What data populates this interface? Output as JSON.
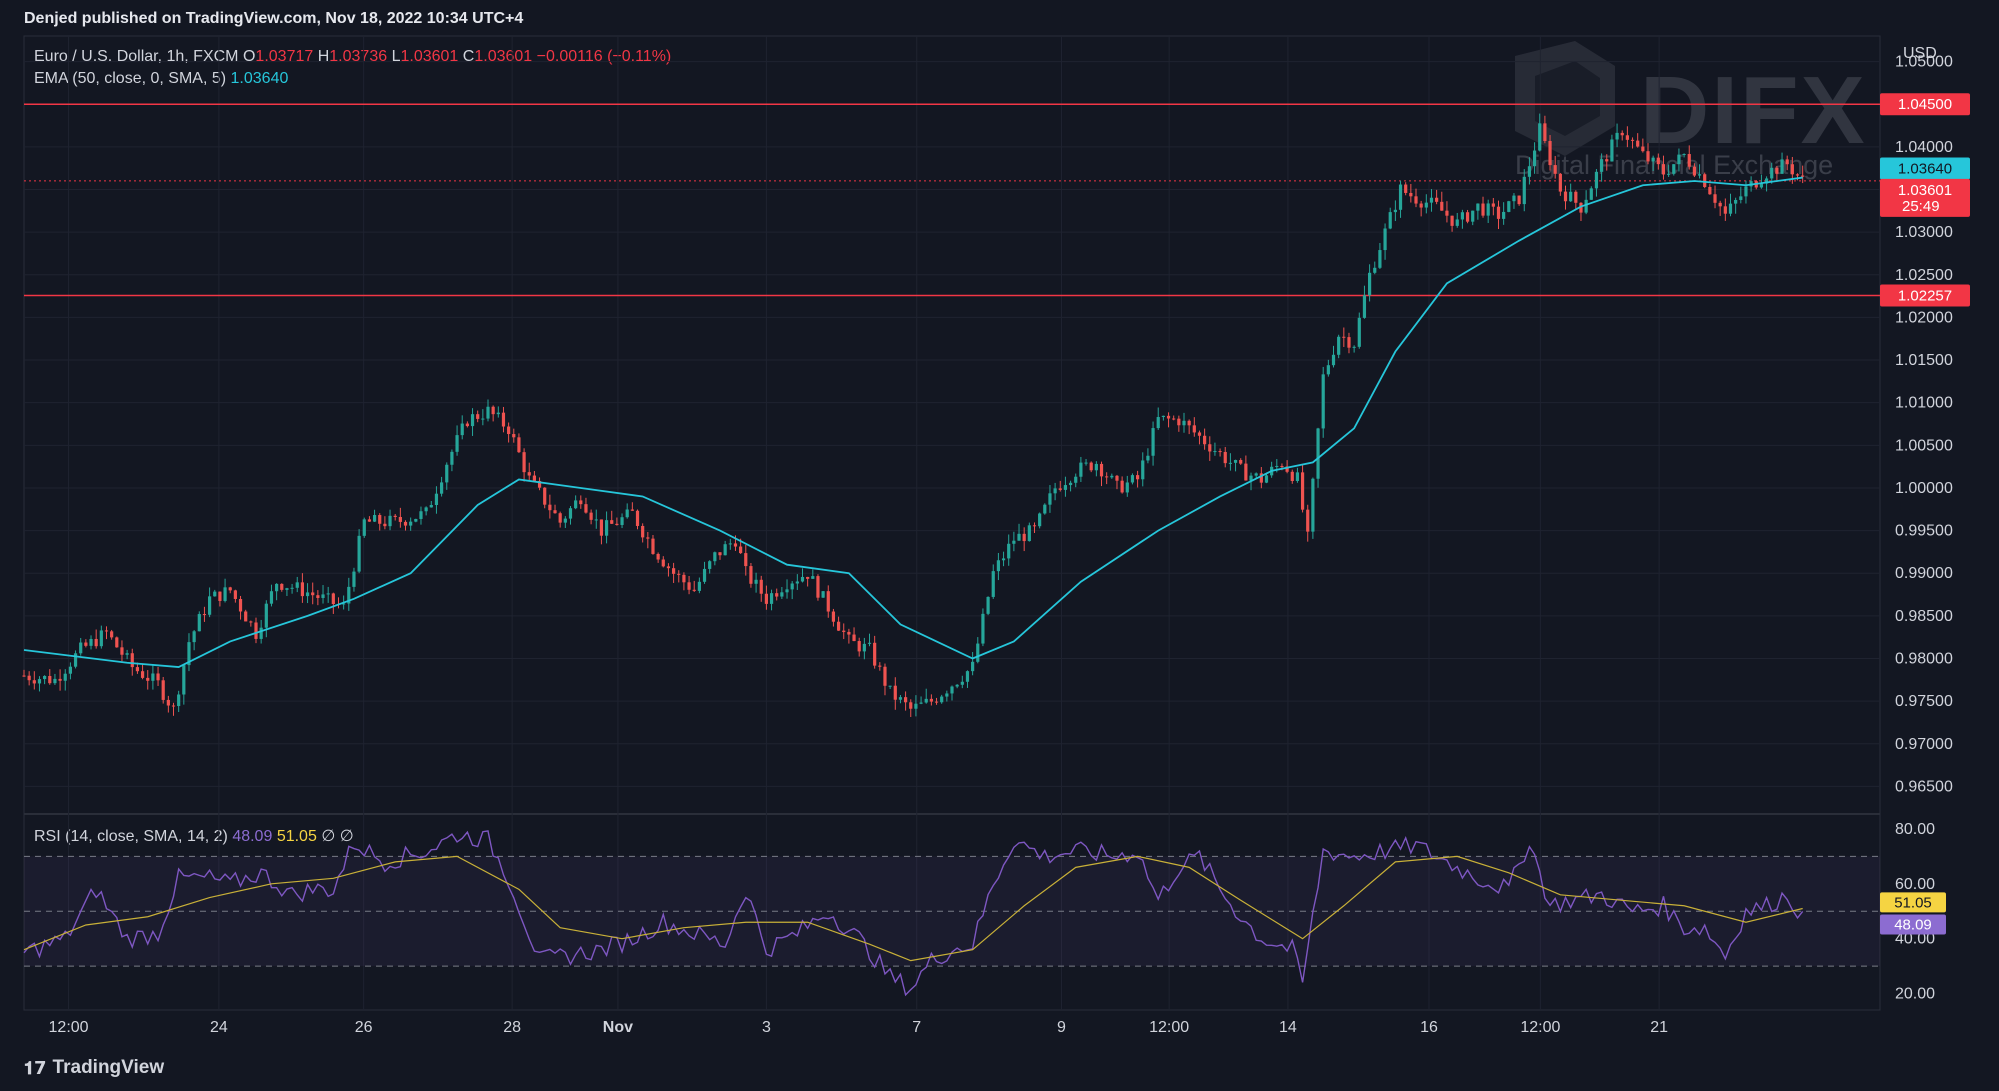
{
  "header": {
    "published": "Denjed published on TradingView.com, Nov 18, 2022 10:34 UTC+4"
  },
  "watermark": {
    "brand": "DIFX",
    "tagline": "Digital Financial Exchange"
  },
  "legend": {
    "symbol": "Euro / U.S. Dollar, 1h, FXCM",
    "o_label": "O",
    "o": "1.03717",
    "h_label": "H",
    "h": "1.03736",
    "l_label": "L",
    "l": "1.03601",
    "c_label": "C",
    "c": "1.03601",
    "change": "−0.00116 (−0.11%)",
    "ema_label": "EMA (50, close, 0, SMA, 5)",
    "ema_value": "1.03640"
  },
  "rsi": {
    "label": "RSI (14, close, SMA, 14, 2)",
    "value": "48.09",
    "ma_value": "51.05",
    "null1": "∅",
    "null2": "∅"
  },
  "footer": {
    "brand": "TradingView"
  },
  "colors": {
    "background": "#131722",
    "up": "#26a69a",
    "down": "#ef5350",
    "ema": "#26c6da",
    "rsi": "#7e57c2",
    "rsi_ma": "#c8b038",
    "hline": "#f23645"
  },
  "chart_data": [
    {
      "type": "candlestick",
      "currency": "USD",
      "y_ticks": [
        "1.05000",
        "1.04500",
        "1.04000",
        "1.03500",
        "1.03000",
        "1.02500",
        "1.02000",
        "1.01500",
        "1.01000",
        "1.00500",
        "1.00000",
        "0.99500",
        "0.99000",
        "0.98500",
        "0.98000",
        "0.97500",
        "0.97000",
        "0.96500"
      ],
      "ylim": [
        0.962,
        1.053
      ],
      "x_ticks": [
        "12:00",
        "24",
        "26",
        "28",
        "Nov",
        "3",
        "7",
        "9",
        "12:00",
        "14",
        "16",
        "12:00",
        "21"
      ],
      "horizontal_lines": [
        {
          "value": 1.045,
          "label": "1.04500"
        },
        {
          "value": 1.02257,
          "label": "1.02257"
        }
      ],
      "badges": [
        {
          "label": "1.03640",
          "value": 1.0364,
          "color": "#26c6da",
          "text_color": "#131722"
        },
        {
          "label": "1.03601",
          "value": 1.03601,
          "sub": "25:49",
          "color": "#f23645",
          "text_color": "#ffffff"
        }
      ],
      "price_path": [
        [
          0,
          0.978
        ],
        [
          6,
          0.9775
        ],
        [
          11,
          0.981
        ],
        [
          16,
          0.983
        ],
        [
          21,
          0.979
        ],
        [
          26,
          0.977
        ],
        [
          29,
          0.974
        ],
        [
          32,
          0.982
        ],
        [
          36,
          0.987
        ],
        [
          40,
          0.988
        ],
        [
          45,
          0.983
        ],
        [
          49,
          0.989
        ],
        [
          54,
          0.988
        ],
        [
          58,
          0.987
        ],
        [
          62,
          0.986
        ],
        [
          66,
          0.996
        ],
        [
          72,
          0.996
        ],
        [
          78,
          0.997
        ],
        [
          82,
          1.003
        ],
        [
          86,
          1.008
        ],
        [
          90,
          1.009
        ],
        [
          94,
          1.007
        ],
        [
          98,
          1.001
        ],
        [
          104,
          0.996
        ],
        [
          108,
          0.999
        ],
        [
          112,
          0.995
        ],
        [
          118,
          0.997
        ],
        [
          122,
          0.993
        ],
        [
          126,
          0.99
        ],
        [
          130,
          0.988
        ],
        [
          134,
          0.992
        ],
        [
          138,
          0.994
        ],
        [
          140,
          0.99
        ],
        [
          144,
          0.987
        ],
        [
          148,
          0.989
        ],
        [
          152,
          0.99
        ],
        [
          156,
          0.986
        ],
        [
          160,
          0.982
        ],
        [
          164,
          0.981
        ],
        [
          168,
          0.976
        ],
        [
          172,
          0.974
        ],
        [
          176,
          0.975
        ],
        [
          180,
          0.977
        ],
        [
          184,
          0.979
        ],
        [
          188,
          0.99
        ],
        [
          192,
          0.994
        ],
        [
          196,
          0.995
        ],
        [
          200,
          1.0
        ],
        [
          204,
          1.002
        ],
        [
          208,
          1.003
        ],
        [
          212,
          1.0
        ],
        [
          216,
          1.001
        ],
        [
          220,
          1.008
        ],
        [
          224,
          1.008
        ],
        [
          228,
          1.006
        ],
        [
          232,
          1.004
        ],
        [
          236,
          1.002
        ],
        [
          240,
          1.001
        ],
        [
          244,
          1.003
        ],
        [
          247,
          1.001
        ],
        [
          249,
          0.994
        ],
        [
          252,
          1.013
        ],
        [
          255,
          1.018
        ],
        [
          258,
          1.017
        ],
        [
          261,
          1.025
        ],
        [
          264,
          1.03
        ],
        [
          267,
          1.035
        ],
        [
          270,
          1.034
        ],
        [
          274,
          1.033
        ],
        [
          278,
          1.031
        ],
        [
          282,
          1.033
        ],
        [
          286,
          1.032
        ],
        [
          290,
          1.034
        ],
        [
          294,
          1.042
        ],
        [
          298,
          1.035
        ],
        [
          302,
          1.033
        ],
        [
          306,
          1.038
        ],
        [
          310,
          1.042
        ],
        [
          314,
          1.039
        ],
        [
          318,
          1.037
        ],
        [
          322,
          1.039
        ],
        [
          326,
          1.036
        ],
        [
          330,
          1.032
        ],
        [
          334,
          1.035
        ],
        [
          338,
          1.037
        ],
        [
          342,
          1.038
        ],
        [
          345,
          1.036
        ]
      ],
      "ema_path": [
        [
          0,
          0.981
        ],
        [
          20,
          0.9795
        ],
        [
          30,
          0.979
        ],
        [
          40,
          0.982
        ],
        [
          55,
          0.985
        ],
        [
          64,
          0.987
        ],
        [
          75,
          0.99
        ],
        [
          88,
          0.998
        ],
        [
          96,
          1.001
        ],
        [
          108,
          1.0
        ],
        [
          120,
          0.999
        ],
        [
          135,
          0.995
        ],
        [
          148,
          0.991
        ],
        [
          160,
          0.99
        ],
        [
          170,
          0.984
        ],
        [
          184,
          0.98
        ],
        [
          192,
          0.982
        ],
        [
          205,
          0.989
        ],
        [
          220,
          0.995
        ],
        [
          232,
          0.999
        ],
        [
          242,
          1.002
        ],
        [
          250,
          1.003
        ],
        [
          258,
          1.007
        ],
        [
          266,
          1.016
        ],
        [
          276,
          1.024
        ],
        [
          290,
          1.029
        ],
        [
          302,
          1.033
        ],
        [
          314,
          1.0355
        ],
        [
          324,
          1.036
        ],
        [
          334,
          1.0355
        ],
        [
          345,
          1.0364
        ]
      ],
      "x_range": [
        0,
        360
      ]
    },
    {
      "type": "line",
      "title": "RSI (14, close, SMA, 14, 2)",
      "y_ticks": [
        "80.00",
        "60.00",
        "40.00",
        "20.00"
      ],
      "ylim": [
        14,
        84
      ],
      "bands": [
        70,
        50,
        30
      ],
      "series": [
        {
          "name": "RSI",
          "color": "#7e57c2",
          "points": [
            [
              0,
              35
            ],
            [
              8,
              40
            ],
            [
              14,
              58
            ],
            [
              20,
              40
            ],
            [
              26,
              42
            ],
            [
              30,
              62
            ],
            [
              36,
              62
            ],
            [
              40,
              60
            ],
            [
              46,
              64
            ],
            [
              52,
              56
            ],
            [
              56,
              58
            ],
            [
              60,
              58
            ],
            [
              64,
              75
            ],
            [
              70,
              68
            ],
            [
              78,
              72
            ],
            [
              84,
              78
            ],
            [
              90,
              76
            ],
            [
              94,
              62
            ],
            [
              100,
              32
            ],
            [
              106,
              34
            ],
            [
              112,
              36
            ],
            [
              118,
              40
            ],
            [
              124,
              46
            ],
            [
              130,
              42
            ],
            [
              136,
              38
            ],
            [
              140,
              58
            ],
            [
              144,
              36
            ],
            [
              150,
              42
            ],
            [
              156,
              50
            ],
            [
              162,
              40
            ],
            [
              168,
              26
            ],
            [
              172,
              22
            ],
            [
              176,
              32
            ],
            [
              180,
              36
            ],
            [
              184,
              38
            ],
            [
              188,
              60
            ],
            [
              192,
              76
            ],
            [
              198,
              70
            ],
            [
              204,
              72
            ],
            [
              212,
              70
            ],
            [
              216,
              72
            ],
            [
              220,
              54
            ],
            [
              224,
              66
            ],
            [
              228,
              70
            ],
            [
              232,
              58
            ],
            [
              236,
              48
            ],
            [
              240,
              40
            ],
            [
              246,
              36
            ],
            [
              248,
              24
            ],
            [
              252,
              72
            ],
            [
              258,
              70
            ],
            [
              264,
              72
            ],
            [
              270,
              74
            ],
            [
              276,
              68
            ],
            [
              282,
              62
            ],
            [
              288,
              58
            ],
            [
              292,
              76
            ],
            [
              296,
              52
            ],
            [
              300,
              54
            ],
            [
              306,
              56
            ],
            [
              312,
              50
            ],
            [
              318,
              52
            ],
            [
              322,
              44
            ],
            [
              326,
              44
            ],
            [
              330,
              34
            ],
            [
              334,
              50
            ],
            [
              338,
              52
            ],
            [
              342,
              56
            ],
            [
              345,
              48
            ]
          ]
        },
        {
          "name": "RSI-based MA",
          "color": "#c8b038",
          "points": [
            [
              0,
              36
            ],
            [
              12,
              45
            ],
            [
              24,
              48
            ],
            [
              36,
              55
            ],
            [
              48,
              60
            ],
            [
              60,
              62
            ],
            [
              72,
              68
            ],
            [
              84,
              70
            ],
            [
              96,
              58
            ],
            [
              104,
              44
            ],
            [
              116,
              40
            ],
            [
              128,
              44
            ],
            [
              140,
              46
            ],
            [
              152,
              46
            ],
            [
              164,
              38
            ],
            [
              172,
              32
            ],
            [
              184,
              36
            ],
            [
              194,
              52
            ],
            [
              204,
              66
            ],
            [
              216,
              70
            ],
            [
              226,
              66
            ],
            [
              236,
              54
            ],
            [
              248,
              40
            ],
            [
              256,
              52
            ],
            [
              266,
              68
            ],
            [
              278,
              70
            ],
            [
              288,
              64
            ],
            [
              298,
              56
            ],
            [
              310,
              54
            ],
            [
              322,
              52
            ],
            [
              334,
              46
            ],
            [
              345,
              51
            ]
          ]
        }
      ],
      "badges": [
        {
          "label": "51.05",
          "value": 51.05,
          "color": "#f5d442",
          "text_color": "#131722"
        },
        {
          "label": "48.09",
          "value": 48.09,
          "color": "#8c6cd1",
          "text_color": "#ffffff"
        }
      ],
      "x_range": [
        0,
        360
      ]
    }
  ]
}
